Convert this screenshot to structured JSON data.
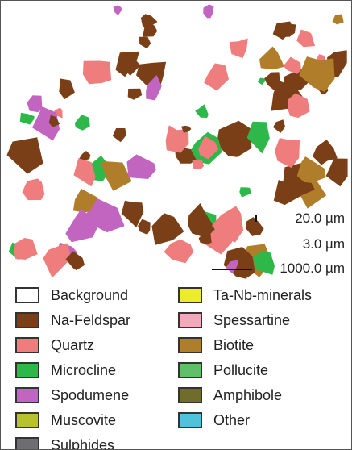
{
  "scale": [
    {
      "label": "20.0 µm"
    },
    {
      "label": "3.0 µm"
    },
    {
      "label": "1000.0 µm"
    }
  ],
  "legend": {
    "left": [
      {
        "label": "Background",
        "color": "#ffffff",
        "icon": "background-swatch"
      },
      {
        "label": "Na-Feldspar",
        "color": "#7b3f17",
        "icon": "na-feldspar-swatch"
      },
      {
        "label": "Quartz",
        "color": "#ef7d7d",
        "icon": "quartz-swatch"
      },
      {
        "label": "Microcline",
        "color": "#2fb84a",
        "icon": "microcline-swatch"
      },
      {
        "label": "Spodumene",
        "color": "#c165c0",
        "icon": "spodumene-swatch"
      },
      {
        "label": "Muscovite",
        "color": "#b8c22a",
        "icon": "muscovite-swatch"
      },
      {
        "label": "Sulphides",
        "color": "#6e6e72",
        "icon": "sulphides-swatch"
      }
    ],
    "right": [
      {
        "label": "Ta-Nb-minerals",
        "color": "#ecec28",
        "icon": "ta-nb-minerals-swatch"
      },
      {
        "label": "Spessartine",
        "color": "#f3a9bb",
        "icon": "spessartine-swatch"
      },
      {
        "label": "Biotite",
        "color": "#b07d2b",
        "icon": "biotite-swatch"
      },
      {
        "label": "Pollucite",
        "color": "#60c06a",
        "icon": "pollucite-swatch"
      },
      {
        "label": "Amphibole",
        "color": "#6f6c2c",
        "icon": "amphibole-swatch"
      },
      {
        "label": "Other",
        "color": "#4fc3dc",
        "icon": "other-swatch"
      }
    ]
  }
}
